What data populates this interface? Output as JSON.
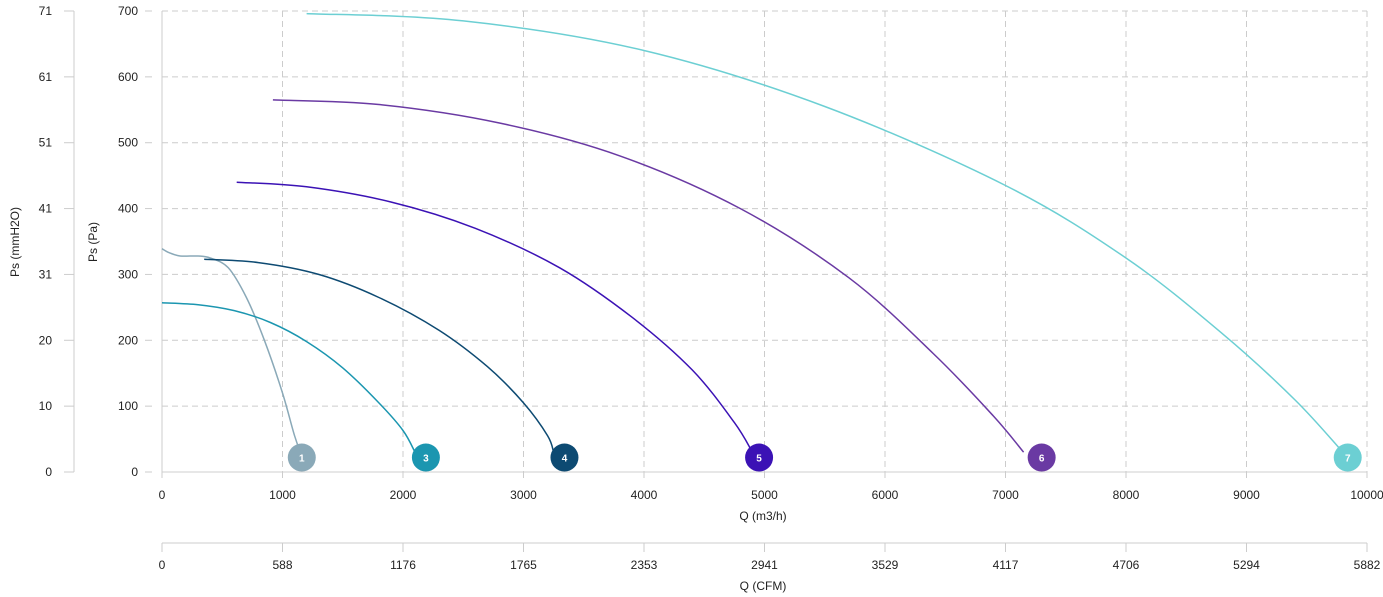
{
  "chart_data": {
    "type": "line",
    "grid": true,
    "grid_style": "dashed",
    "x_axes": [
      {
        "id": "qm3h",
        "label": "Q (m3/h)",
        "min": 0,
        "max": 10000,
        "ticks": [
          "0",
          "1000",
          "2000",
          "3000",
          "4000",
          "5000",
          "6000",
          "7000",
          "8000",
          "9000",
          "10000"
        ]
      },
      {
        "id": "qcfm",
        "label": "Q (CFM)",
        "min": 0,
        "max": 5882,
        "ticks": [
          "0",
          "588",
          "1176",
          "1765",
          "2353",
          "2941",
          "3529",
          "4117",
          "4706",
          "5294",
          "5882"
        ]
      }
    ],
    "y_axes": [
      {
        "id": "pa",
        "label": "Ps (Pa)",
        "min": 0,
        "max": 700,
        "ticks": [
          "0",
          "100",
          "200",
          "300",
          "400",
          "500",
          "600",
          "700"
        ]
      },
      {
        "id": "mmh2o",
        "label": "Ps (mmH2O)",
        "min": 0,
        "max": 71,
        "ticks": [
          "0",
          "10",
          "20",
          "31",
          "41",
          "51",
          "61",
          "71"
        ]
      }
    ],
    "series": [
      {
        "marker": "1",
        "color": "#8aa9b8",
        "x": [
          0,
          60,
          150,
          300,
          400,
          550,
          700,
          850,
          1000,
          1100,
          1150
        ],
        "y": [
          339,
          333,
          328,
          328,
          325,
          310,
          265,
          200,
          120,
          55,
          30
        ]
      },
      {
        "marker": "3",
        "color": "#1b96b0",
        "x": [
          0,
          300,
          600,
          900,
          1200,
          1500,
          1800,
          2000,
          2100
        ],
        "y": [
          257,
          254,
          245,
          227,
          198,
          158,
          105,
          63,
          30
        ]
      },
      {
        "marker": "4",
        "color": "#0d4a72",
        "x": [
          350,
          800,
          1300,
          1800,
          2300,
          2700,
          3000,
          3200,
          3250
        ],
        "y": [
          323,
          318,
          300,
          265,
          215,
          160,
          105,
          55,
          30
        ]
      },
      {
        "marker": "5",
        "color": "#3b12b5",
        "x": [
          620,
          1200,
          1900,
          2600,
          3300,
          3900,
          4400,
          4750,
          4900
        ],
        "y": [
          440,
          433,
          410,
          370,
          310,
          235,
          155,
          75,
          30
        ]
      },
      {
        "marker": "6",
        "color": "#6a3aa3",
        "x": [
          920,
          1800,
          2800,
          3800,
          4800,
          5700,
          6400,
          6900,
          7150
        ],
        "y": [
          565,
          558,
          530,
          480,
          400,
          295,
          180,
          85,
          30
        ]
      },
      {
        "marker": "7",
        "color": "#6ccfd3",
        "x": [
          1200,
          2500,
          4000,
          5500,
          7000,
          8000,
          8800,
          9400,
          9800
        ],
        "y": [
          696,
          685,
          640,
          555,
          435,
          325,
          210,
          110,
          30
        ]
      }
    ],
    "markers": [
      {
        "label": "1",
        "x": 1160,
        "y": 22,
        "color": "#8aa9b8"
      },
      {
        "label": "3",
        "x": 2190,
        "y": 22,
        "color": "#1b96b0"
      },
      {
        "label": "4",
        "x": 3340,
        "y": 22,
        "color": "#0d4a72"
      },
      {
        "label": "5",
        "x": 4955,
        "y": 22,
        "color": "#3b12b5"
      },
      {
        "label": "6",
        "x": 7300,
        "y": 22,
        "color": "#6a3aa3"
      },
      {
        "label": "7",
        "x": 9840,
        "y": 22,
        "color": "#6ccfd3"
      }
    ]
  }
}
